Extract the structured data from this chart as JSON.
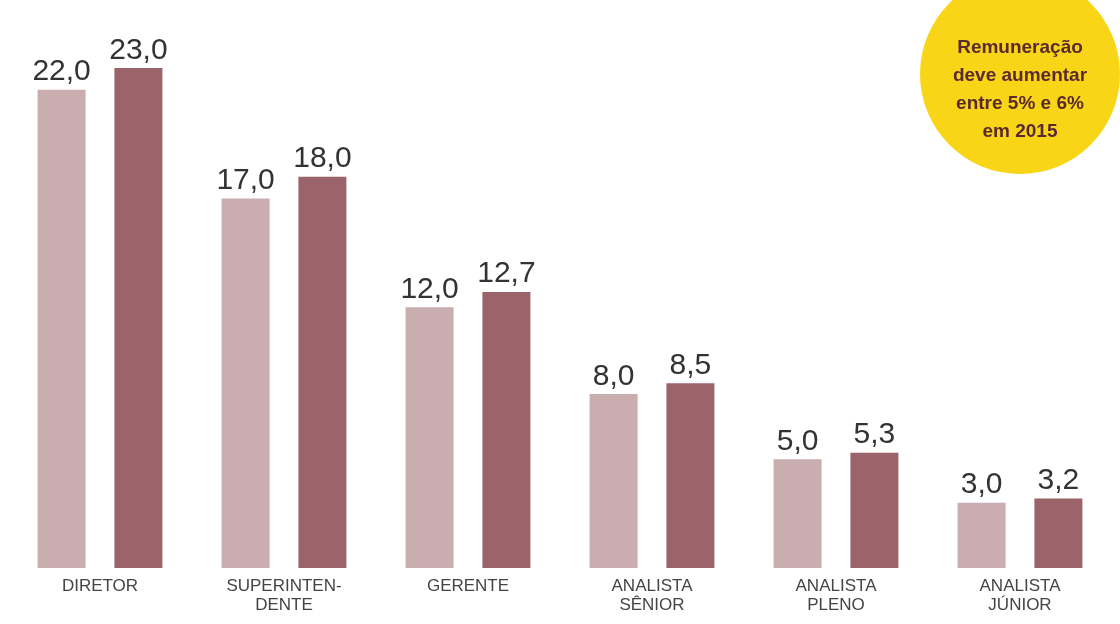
{
  "chart_data": {
    "type": "bar",
    "categories": [
      "DIRETOR",
      "SUPERINTEN-\nDENTE",
      "GERENTE",
      "ANALISTA\nSÊNIOR",
      "ANALISTA\nPLENO",
      "ANALISTA\nJÚNIOR"
    ],
    "series": [
      {
        "color": "#c9adaf",
        "values": [
          22.0,
          17.0,
          12.0,
          8.0,
          5.0,
          3.0
        ],
        "value_labels": [
          "22,0",
          "17,0",
          "12,0",
          "8,0",
          "5,0",
          "3,0"
        ]
      },
      {
        "color": "#9b636a",
        "values": [
          23.0,
          18.0,
          12.7,
          8.5,
          5.3,
          3.2
        ],
        "value_labels": [
          "23,0",
          "18,0",
          "12,7",
          "8,5",
          "5,3",
          "3,2"
        ]
      }
    ],
    "annotations": [
      "Remuneração deve aumentar entre 5% e 6% em 2015"
    ],
    "grid": false
  }
}
